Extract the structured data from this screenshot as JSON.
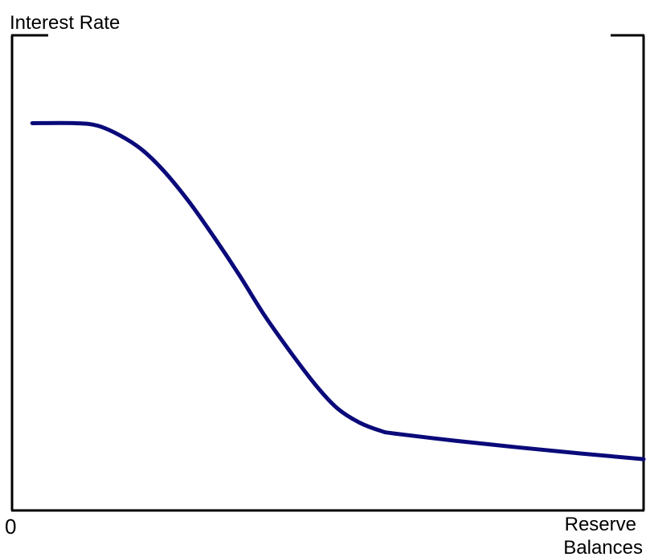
{
  "chart_data": {
    "type": "line",
    "title": "",
    "ylabel": "Interest Rate",
    "xlabel": [
      "Reserve",
      "Balances"
    ],
    "origin_label": "0",
    "xlim": [
      0,
      100
    ],
    "ylim": [
      0,
      100
    ],
    "grid": false,
    "series": [
      {
        "color": "#0a0a7a",
        "x": [
          3.2,
          10,
          13.5,
          17,
          20.5,
          24,
          28,
          32,
          36,
          40,
          44,
          48,
          51.5,
          55,
          58.5,
          60.5,
          70,
          80,
          90,
          100
        ],
        "y": [
          81.5,
          81.5,
          81,
          79,
          76,
          71.5,
          65,
          57.5,
          49.5,
          41,
          33.5,
          26.5,
          21.5,
          18.5,
          16.7,
          16.2,
          14.7,
          13.3,
          12,
          10.8
        ]
      }
    ]
  },
  "colors": {
    "curve": "#0a0a7a",
    "axis": "#000000"
  }
}
